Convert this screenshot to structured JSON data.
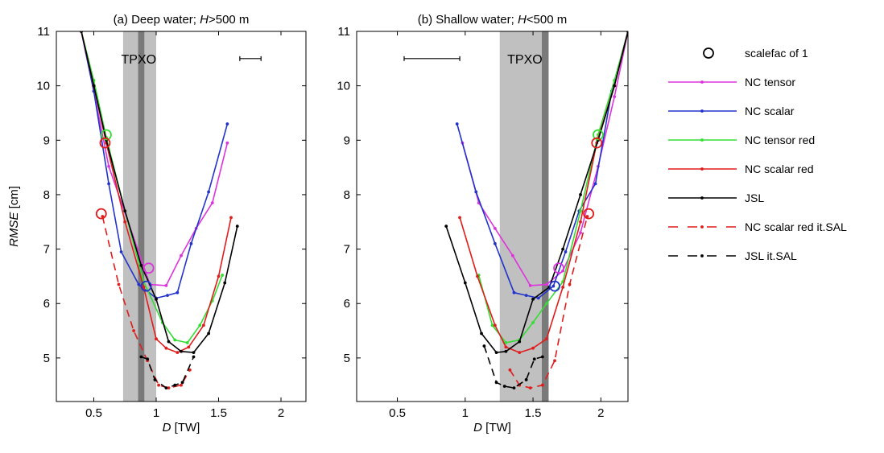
{
  "chart_data": [
    {
      "type": "line",
      "title_prefix": "(a) Deep water; ",
      "title_var": "H",
      "title_suffix": ">500 m",
      "xlabel_var": "D",
      "xlabel_unit": " [TW]",
      "ylabel_var": "RMSE",
      "ylabel_unit": " [cm]",
      "xlim": [
        0.2,
        2.2
      ],
      "ylim": [
        4.2,
        11
      ],
      "xticks": [
        "0.5",
        "1",
        "1.5",
        "2"
      ],
      "xtick_values": [
        0.5,
        1,
        1.5,
        2
      ],
      "yticks": [
        "5",
        "6",
        "7",
        "8",
        "9",
        "10",
        "11"
      ],
      "ytick_values": [
        5,
        6,
        7,
        8,
        9,
        10,
        11
      ],
      "bands": [
        {
          "x0": 0.735,
          "x1": 1.0,
          "color": "#c0c0c0"
        },
        {
          "x0": 0.855,
          "x1": 0.905,
          "color": "#7a7a7a"
        }
      ],
      "annotation": {
        "text": "TPXO",
        "x": 0.86,
        "y": 10.5
      },
      "errorbar": {
        "x0": 1.67,
        "x1": 1.84,
        "y": 10.5
      },
      "series": [
        {
          "key": "tensor",
          "x": [
            0.4,
            0.5,
            0.62,
            0.95,
            1.08,
            1.2,
            1.32,
            1.45,
            1.57
          ],
          "y": [
            11.0,
            9.9,
            8.52,
            6.35,
            6.33,
            6.88,
            7.38,
            7.85,
            8.95
          ]
        },
        {
          "key": "scalar",
          "x": [
            0.4,
            0.5,
            0.62,
            0.72,
            0.86,
            1.0,
            1.09,
            1.17,
            1.28,
            1.42,
            1.57
          ],
          "y": [
            11.0,
            9.9,
            8.2,
            6.95,
            6.35,
            6.1,
            6.15,
            6.2,
            7.1,
            8.05,
            9.3
          ]
        },
        {
          "key": "tensor_red",
          "x": [
            0.4,
            0.5,
            0.6,
            0.75,
            0.9,
            1.05,
            1.15,
            1.25,
            1.35,
            1.45,
            1.53
          ],
          "y": [
            11.0,
            10.1,
            9.05,
            7.7,
            6.4,
            5.65,
            5.33,
            5.28,
            5.6,
            6.05,
            6.52
          ]
        },
        {
          "key": "scalar_red",
          "x": [
            0.4,
            0.5,
            0.6,
            0.75,
            0.9,
            1.0,
            1.08,
            1.17,
            1.26,
            1.38,
            1.5,
            1.6
          ],
          "y": [
            11.0,
            10.0,
            8.95,
            7.5,
            6.3,
            5.35,
            5.18,
            5.1,
            5.2,
            5.6,
            6.5,
            7.58
          ]
        },
        {
          "key": "jsl",
          "x": [
            0.4,
            0.5,
            0.6,
            0.75,
            0.88,
            1.0,
            1.1,
            1.2,
            1.3,
            1.42,
            1.55,
            1.65
          ],
          "y": [
            11.0,
            10.0,
            9.0,
            7.7,
            6.7,
            6.08,
            5.3,
            5.12,
            5.1,
            5.45,
            6.38,
            7.42
          ]
        },
        {
          "key": "scalar_red_itsal",
          "x": [
            0.57,
            0.7,
            0.82,
            0.93,
            1.02,
            1.1,
            1.2,
            1.27
          ],
          "y": [
            7.6,
            6.35,
            5.5,
            4.95,
            4.5,
            4.45,
            4.5,
            4.78
          ]
        },
        {
          "key": "jsl_itsal",
          "x": [
            0.88,
            0.93,
            0.99,
            1.08,
            1.15,
            1.21,
            1.3
          ],
          "y": [
            5.02,
            4.98,
            4.6,
            4.45,
            4.5,
            4.55,
            5.02
          ]
        }
      ],
      "markers": [
        {
          "key": "m_green",
          "x": 0.6,
          "y": 9.1,
          "color": "#33dd33"
        },
        {
          "key": "m_red",
          "x": 0.59,
          "y": 8.95,
          "color": "#e01c1c"
        },
        {
          "key": "m_red_itsal",
          "x": 0.56,
          "y": 7.65,
          "color": "#e01c1c"
        },
        {
          "key": "m_magenta",
          "x": 0.94,
          "y": 6.65,
          "color": "#dd33dd"
        },
        {
          "key": "m_blue",
          "x": 0.92,
          "y": 6.32,
          "color": "#2233cc"
        }
      ]
    },
    {
      "type": "line",
      "title_prefix": "(b) Shallow water; ",
      "title_var": "H",
      "title_suffix": "<500 m",
      "xlabel_var": "D",
      "xlabel_unit": " [TW]",
      "ylabel_var": "",
      "ylabel_unit": "",
      "xlim": [
        0.2,
        2.2
      ],
      "ylim": [
        4.2,
        11
      ],
      "xticks": [
        "0.5",
        "1",
        "1.5",
        "2"
      ],
      "xtick_values": [
        0.5,
        1,
        1.5,
        2
      ],
      "yticks": [
        "5",
        "6",
        "7",
        "8",
        "9",
        "10",
        "11"
      ],
      "ytick_values": [
        5,
        6,
        7,
        8,
        9,
        10,
        11
      ],
      "bands": [
        {
          "x0": 1.255,
          "x1": 1.615,
          "color": "#c0c0c0"
        },
        {
          "x0": 1.565,
          "x1": 1.615,
          "color": "#7a7a7a"
        }
      ],
      "annotation": {
        "text": "TPXO",
        "x": 1.44,
        "y": 10.5
      },
      "errorbar": {
        "x0": 0.55,
        "x1": 0.96,
        "y": 10.5
      },
      "series": [
        {
          "key": "tensor",
          "x": [
            0.98,
            1.1,
            1.22,
            1.35,
            1.48,
            1.6,
            1.72,
            1.85,
            1.98,
            2.1,
            2.2
          ],
          "y": [
            8.95,
            7.85,
            7.38,
            6.88,
            6.33,
            6.35,
            6.6,
            7.3,
            8.52,
            9.8,
            11.0
          ]
        },
        {
          "key": "scalar",
          "x": [
            0.94,
            1.08,
            1.22,
            1.36,
            1.45,
            1.54,
            1.65,
            1.74,
            1.84,
            1.96,
            2.08,
            2.2
          ],
          "y": [
            9.3,
            8.05,
            7.1,
            6.2,
            6.15,
            6.1,
            6.32,
            6.95,
            7.7,
            8.2,
            9.9,
            11.0
          ]
        },
        {
          "key": "tensor_red",
          "x": [
            1.1,
            1.2,
            1.3,
            1.4,
            1.5,
            1.6,
            1.72,
            1.85,
            1.98,
            2.1,
            2.2
          ],
          "y": [
            6.52,
            5.6,
            5.28,
            5.33,
            5.65,
            6.0,
            6.4,
            7.7,
            9.1,
            10.1,
            11.0
          ]
        },
        {
          "key": "scalar_red",
          "x": [
            0.96,
            1.09,
            1.22,
            1.3,
            1.4,
            1.5,
            1.6,
            1.72,
            1.85,
            1.97,
            2.1,
            2.2
          ],
          "y": [
            7.58,
            6.5,
            5.6,
            5.2,
            5.1,
            5.18,
            5.35,
            6.3,
            7.5,
            8.95,
            10.0,
            11.0
          ]
        },
        {
          "key": "jsl",
          "x": [
            0.86,
            1.0,
            1.12,
            1.23,
            1.3,
            1.4,
            1.5,
            1.62,
            1.72,
            1.85,
            1.98,
            2.1,
            2.2
          ],
          "y": [
            7.42,
            6.38,
            5.45,
            5.1,
            5.12,
            5.3,
            6.08,
            6.3,
            7.0,
            8.0,
            9.0,
            10.0,
            11.0
          ]
        },
        {
          "key": "scalar_red_itsal",
          "x": [
            1.33,
            1.4,
            1.48,
            1.57,
            1.66,
            1.77,
            1.9
          ],
          "y": [
            4.78,
            4.5,
            4.45,
            4.5,
            4.95,
            6.35,
            7.6
          ]
        },
        {
          "key": "jsl_itsal",
          "x": [
            1.14,
            1.23,
            1.29,
            1.36,
            1.45,
            1.51,
            1.57
          ],
          "y": [
            5.22,
            4.55,
            4.48,
            4.45,
            4.6,
            4.98,
            5.02
          ]
        }
      ],
      "markers": [
        {
          "key": "m_green",
          "x": 1.98,
          "y": 9.1,
          "color": "#33dd33"
        },
        {
          "key": "m_red",
          "x": 1.97,
          "y": 8.95,
          "color": "#e01c1c"
        },
        {
          "key": "m_red_itsal",
          "x": 1.91,
          "y": 7.65,
          "color": "#e01c1c"
        },
        {
          "key": "m_magenta",
          "x": 1.69,
          "y": 6.65,
          "color": "#dd33dd"
        },
        {
          "key": "m_blue",
          "x": 1.66,
          "y": 6.32,
          "color": "#2233cc"
        }
      ]
    }
  ],
  "legend": {
    "placement": "right",
    "entries": [
      {
        "key": "marker",
        "label": "scalefac of 1",
        "color": "#000000",
        "style": "circle"
      },
      {
        "key": "tensor",
        "label": "NC tensor",
        "color": "#dd33dd",
        "style": "solid"
      },
      {
        "key": "scalar",
        "label": "NC scalar",
        "color": "#2233cc",
        "style": "solid"
      },
      {
        "key": "tensor_red",
        "label": "NC tensor red",
        "color": "#33dd33",
        "style": "solid"
      },
      {
        "key": "scalar_red",
        "label": "NC scalar red",
        "color": "#e01c1c",
        "style": "solid"
      },
      {
        "key": "jsl",
        "label": "JSL",
        "color": "#000000",
        "style": "solid"
      },
      {
        "key": "scalar_red_itsal",
        "label": "NC scalar red it.SAL",
        "color": "#e01c1c",
        "style": "dashed"
      },
      {
        "key": "jsl_itsal",
        "label": "JSL it.SAL",
        "color": "#000000",
        "style": "dashed"
      }
    ]
  }
}
